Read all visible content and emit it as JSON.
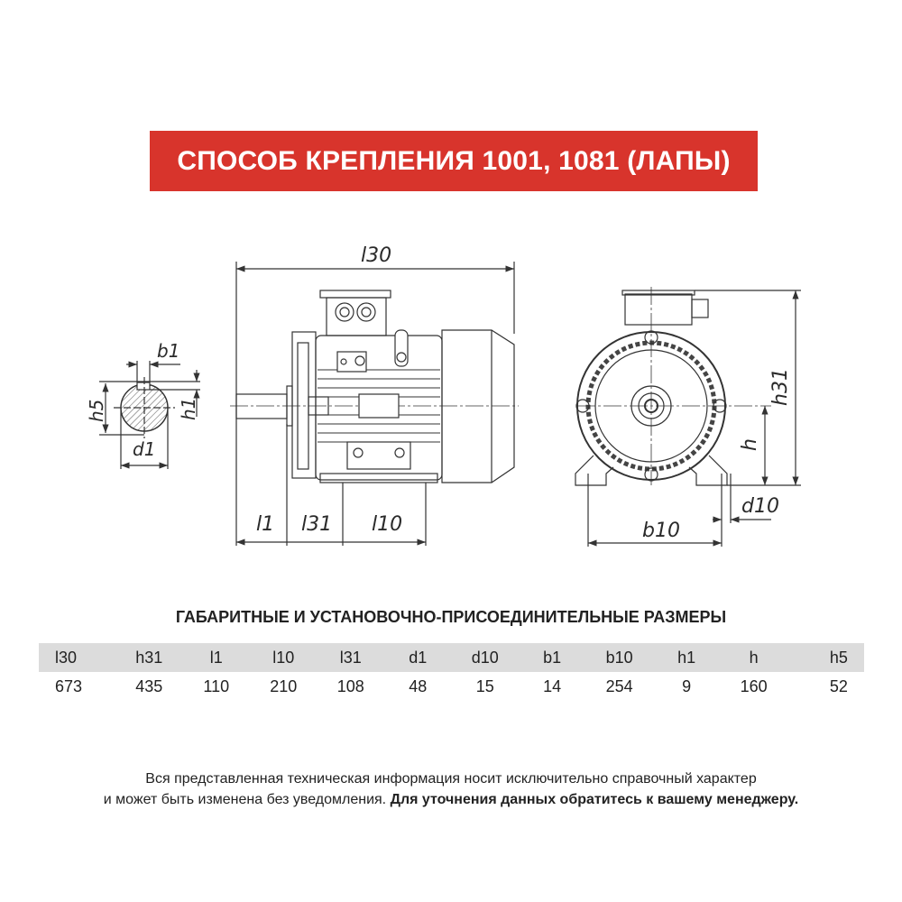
{
  "banner": {
    "title": "СПОСОБ КРЕПЛЕНИЯ 1001, 1081 (ЛАПЫ)",
    "color": "#d8342c"
  },
  "drawing": {
    "labels": {
      "l30": "l30",
      "l1": "l1",
      "l31": "l31",
      "l10": "l10",
      "h31": "h31",
      "h": "h",
      "d10": "d10",
      "b10": "b10",
      "b1": "b1",
      "h5": "h5",
      "h1": "h1",
      "d1": "d1"
    }
  },
  "dimensions": {
    "title": "ГАБАРИТНЫЕ И УСТАНОВОЧНО-ПРИСОЕДИНИТЕЛЬНЫЕ РАЗМЕРЫ",
    "headers": [
      "l30",
      "h31",
      "l1",
      "l10",
      "l31",
      "d1",
      "d10",
      "b1",
      "b10",
      "h1",
      "h",
      "h5"
    ],
    "values": [
      "673",
      "435",
      "110",
      "210",
      "108",
      "48",
      "15",
      "14",
      "254",
      "9",
      "160",
      "52"
    ]
  },
  "footer": {
    "line1": "Вся представленная техническая информация носит исключительно справочный характер",
    "line2": "и может быть изменена без уведомления.",
    "line2_bold": "Для уточнения данных обратитесь к вашему менеджеру."
  }
}
